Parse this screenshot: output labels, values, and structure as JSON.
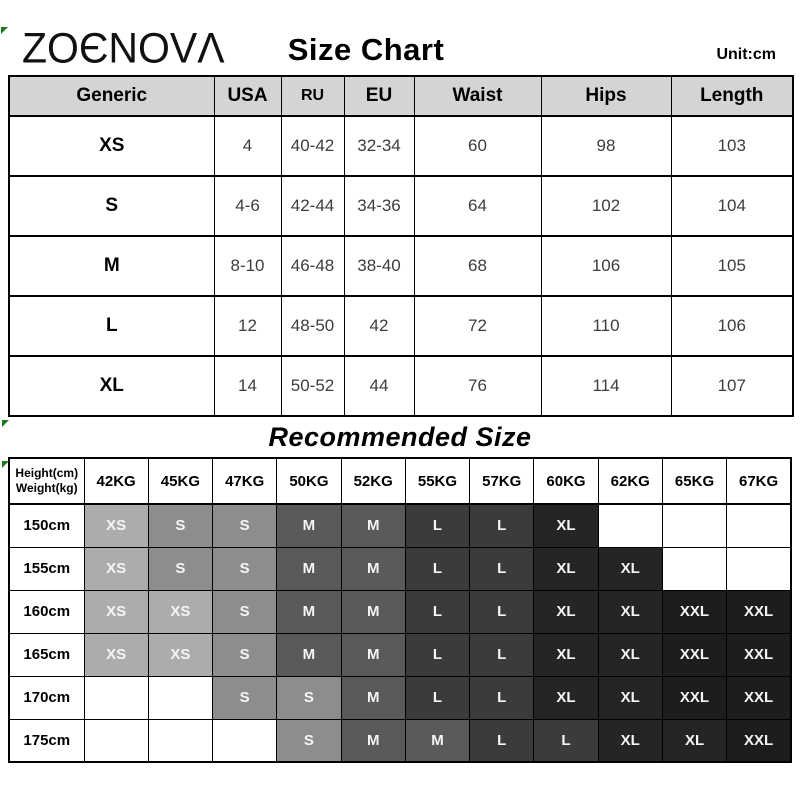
{
  "page": {
    "brand": "ZOENOVA",
    "brand_stylized": "ZOЄNOVΛ",
    "title": "Size Chart",
    "unit_label": "Unit:cm"
  },
  "size_table": {
    "columns": [
      "Generic",
      "USA",
      "RU",
      "EU",
      "Waist",
      "Hips",
      "Length"
    ],
    "rows": [
      {
        "generic": "XS",
        "usa": "4",
        "ru": "40-42",
        "eu": "32-34",
        "waist": "60",
        "hips": "98",
        "length": "103"
      },
      {
        "generic": "S",
        "usa": "4-6",
        "ru": "42-44",
        "eu": "34-36",
        "waist": "64",
        "hips": "102",
        "length": "104"
      },
      {
        "generic": "M",
        "usa": "8-10",
        "ru": "46-48",
        "eu": "38-40",
        "waist": "68",
        "hips": "106",
        "length": "105"
      },
      {
        "generic": "L",
        "usa": "12",
        "ru": "48-50",
        "eu": "42",
        "waist": "72",
        "hips": "110",
        "length": "106"
      },
      {
        "generic": "XL",
        "usa": "14",
        "ru": "50-52",
        "eu": "44",
        "waist": "76",
        "hips": "114",
        "length": "107"
      }
    ]
  },
  "recommended": {
    "title": "Recommended Size",
    "corner_header": [
      "Height(cm)",
      "Weight(kg)"
    ],
    "weight_columns": [
      "42KG",
      "45KG",
      "47KG",
      "50KG",
      "52KG",
      "55KG",
      "57KG",
      "60KG",
      "62KG",
      "65KG",
      "67KG"
    ],
    "height_rows": [
      "150cm",
      "155cm",
      "160cm",
      "165cm",
      "170cm",
      "175cm"
    ],
    "cells": [
      [
        "XS",
        "S",
        "S",
        "M",
        "M",
        "L",
        "L",
        "XL",
        "",
        "",
        ""
      ],
      [
        "XS",
        "S",
        "S",
        "M",
        "M",
        "L",
        "L",
        "XL",
        "XL",
        "",
        ""
      ],
      [
        "XS",
        "XS",
        "S",
        "M",
        "M",
        "L",
        "L",
        "XL",
        "XL",
        "XXL",
        "XXL"
      ],
      [
        "XS",
        "XS",
        "S",
        "M",
        "M",
        "L",
        "L",
        "XL",
        "XL",
        "XXL",
        "XXL"
      ],
      [
        "",
        "",
        "S",
        "S",
        "M",
        "L",
        "L",
        "XL",
        "XL",
        "XXL",
        "XXL"
      ],
      [
        "",
        "",
        "",
        "S",
        "M",
        "M",
        "L",
        "L",
        "XL",
        "XL",
        "XXL"
      ]
    ],
    "size_colors": {
      "XS": "#acacac",
      "S": "#8d8d8d",
      "M": "#5a5a5a",
      "L": "#3b3b3b",
      "XL": "#252525",
      "XXL": "#1d1d1d"
    }
  },
  "colors": {
    "header_bg": "#d4d4d4",
    "unit_red": "#e60000",
    "marker_green": "#1e7a1e",
    "cell_text": "#f5f5f5"
  }
}
